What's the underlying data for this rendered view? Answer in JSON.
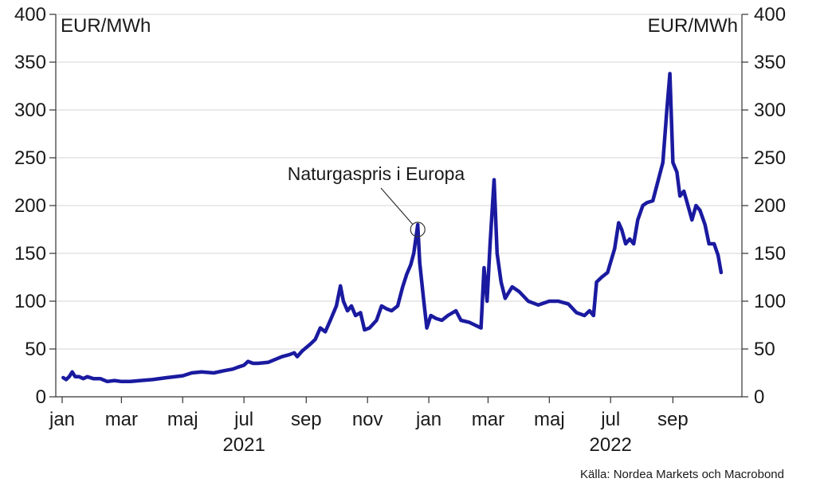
{
  "chart_data": {
    "type": "line",
    "title": "",
    "xlabel": "",
    "ylabel": "EUR/MWh",
    "ylabel_left": "EUR/MWh",
    "ylabel_right": "EUR/MWh",
    "ylim": [
      0,
      400
    ],
    "yticks": [
      0,
      50,
      100,
      150,
      200,
      250,
      300,
      350,
      400
    ],
    "xlim": [
      "2021-01-01",
      "2022-10-31"
    ],
    "x_month_ticks": [
      {
        "label": "jan",
        "date": "2021-01-01"
      },
      {
        "label": "mar",
        "date": "2021-03-01"
      },
      {
        "label": "maj",
        "date": "2021-05-01"
      },
      {
        "label": "jul",
        "date": "2021-07-01"
      },
      {
        "label": "sep",
        "date": "2021-09-01"
      },
      {
        "label": "nov",
        "date": "2021-11-01"
      },
      {
        "label": "jan",
        "date": "2022-01-01"
      },
      {
        "label": "mar",
        "date": "2022-03-01"
      },
      {
        "label": "maj",
        "date": "2022-05-01"
      },
      {
        "label": "jul",
        "date": "2022-07-01"
      },
      {
        "label": "sep",
        "date": "2022-09-01"
      }
    ],
    "x_year_labels": [
      {
        "label": "2021",
        "date": "2021-07-01"
      },
      {
        "label": "2022",
        "date": "2022-07-01"
      }
    ],
    "grid": true,
    "series": [
      {
        "name": "Naturgaspris i Europa",
        "color": "#1a1aa0",
        "points": [
          [
            "2021-01-02",
            20
          ],
          [
            "2021-01-05",
            18
          ],
          [
            "2021-01-08",
            21
          ],
          [
            "2021-01-11",
            26
          ],
          [
            "2021-01-14",
            21
          ],
          [
            "2021-01-18",
            21
          ],
          [
            "2021-01-22",
            19
          ],
          [
            "2021-01-26",
            21
          ],
          [
            "2021-02-01",
            19
          ],
          [
            "2021-02-08",
            19
          ],
          [
            "2021-02-15",
            16
          ],
          [
            "2021-02-22",
            17
          ],
          [
            "2021-03-01",
            16
          ],
          [
            "2021-03-10",
            16
          ],
          [
            "2021-03-20",
            17
          ],
          [
            "2021-04-01",
            18
          ],
          [
            "2021-04-15",
            20
          ],
          [
            "2021-05-01",
            22
          ],
          [
            "2021-05-10",
            25
          ],
          [
            "2021-05-20",
            26
          ],
          [
            "2021-06-01",
            25
          ],
          [
            "2021-06-10",
            27
          ],
          [
            "2021-06-20",
            29
          ],
          [
            "2021-06-25",
            31
          ],
          [
            "2021-07-01",
            33
          ],
          [
            "2021-07-05",
            37
          ],
          [
            "2021-07-10",
            35
          ],
          [
            "2021-07-15",
            35
          ],
          [
            "2021-07-25",
            36
          ],
          [
            "2021-08-01",
            39
          ],
          [
            "2021-08-08",
            42
          ],
          [
            "2021-08-15",
            44
          ],
          [
            "2021-08-20",
            46
          ],
          [
            "2021-08-23",
            42
          ],
          [
            "2021-08-28",
            48
          ],
          [
            "2021-09-05",
            55
          ],
          [
            "2021-09-10",
            60
          ],
          [
            "2021-09-15",
            72
          ],
          [
            "2021-09-20",
            68
          ],
          [
            "2021-09-25",
            80
          ],
          [
            "2021-10-01",
            95
          ],
          [
            "2021-10-05",
            116
          ],
          [
            "2021-10-08",
            100
          ],
          [
            "2021-10-12",
            90
          ],
          [
            "2021-10-16",
            95
          ],
          [
            "2021-10-20",
            85
          ],
          [
            "2021-10-25",
            88
          ],
          [
            "2021-10-29",
            70
          ],
          [
            "2021-11-03",
            72
          ],
          [
            "2021-11-10",
            80
          ],
          [
            "2021-11-15",
            95
          ],
          [
            "2021-11-20",
            92
          ],
          [
            "2021-11-25",
            90
          ],
          [
            "2021-12-01",
            95
          ],
          [
            "2021-12-06",
            115
          ],
          [
            "2021-12-10",
            128
          ],
          [
            "2021-12-14",
            138
          ],
          [
            "2021-12-17",
            150
          ],
          [
            "2021-12-21",
            180
          ],
          [
            "2021-12-23",
            140
          ],
          [
            "2021-12-27",
            100
          ],
          [
            "2021-12-30",
            72
          ],
          [
            "2022-01-03",
            85
          ],
          [
            "2022-01-08",
            82
          ],
          [
            "2022-01-14",
            80
          ],
          [
            "2022-01-20",
            85
          ],
          [
            "2022-01-28",
            90
          ],
          [
            "2022-02-02",
            80
          ],
          [
            "2022-02-10",
            78
          ],
          [
            "2022-02-16",
            75
          ],
          [
            "2022-02-22",
            72
          ],
          [
            "2022-02-25",
            135
          ],
          [
            "2022-02-28",
            100
          ],
          [
            "2022-03-03",
            160
          ],
          [
            "2022-03-07",
            227
          ],
          [
            "2022-03-10",
            150
          ],
          [
            "2022-03-14",
            120
          ],
          [
            "2022-03-18",
            103
          ],
          [
            "2022-03-25",
            115
          ],
          [
            "2022-04-01",
            110
          ],
          [
            "2022-04-10",
            100
          ],
          [
            "2022-04-20",
            96
          ],
          [
            "2022-05-01",
            100
          ],
          [
            "2022-05-10",
            100
          ],
          [
            "2022-05-20",
            97
          ],
          [
            "2022-05-28",
            88
          ],
          [
            "2022-06-05",
            85
          ],
          [
            "2022-06-10",
            90
          ],
          [
            "2022-06-14",
            85
          ],
          [
            "2022-06-17",
            120
          ],
          [
            "2022-06-22",
            125
          ],
          [
            "2022-06-28",
            130
          ],
          [
            "2022-07-05",
            155
          ],
          [
            "2022-07-09",
            182
          ],
          [
            "2022-07-12",
            175
          ],
          [
            "2022-07-16",
            160
          ],
          [
            "2022-07-20",
            165
          ],
          [
            "2022-07-24",
            160
          ],
          [
            "2022-07-28",
            185
          ],
          [
            "2022-08-02",
            200
          ],
          [
            "2022-08-06",
            203
          ],
          [
            "2022-08-12",
            205
          ],
          [
            "2022-08-17",
            225
          ],
          [
            "2022-08-22",
            245
          ],
          [
            "2022-08-26",
            300
          ],
          [
            "2022-08-29",
            338
          ],
          [
            "2022-09-01",
            245
          ],
          [
            "2022-09-05",
            235
          ],
          [
            "2022-09-08",
            210
          ],
          [
            "2022-09-12",
            215
          ],
          [
            "2022-09-16",
            200
          ],
          [
            "2022-09-20",
            185
          ],
          [
            "2022-09-24",
            200
          ],
          [
            "2022-09-28",
            195
          ],
          [
            "2022-10-03",
            180
          ],
          [
            "2022-10-07",
            160
          ],
          [
            "2022-10-12",
            160
          ],
          [
            "2022-10-16",
            148
          ],
          [
            "2022-10-19",
            130
          ]
        ]
      }
    ],
    "annotation": {
      "text": "Naturgaspris i Europa",
      "target_date": "2021-12-21",
      "target_value": 175
    },
    "source": "Källa: Nordea Markets och Macrobond"
  }
}
